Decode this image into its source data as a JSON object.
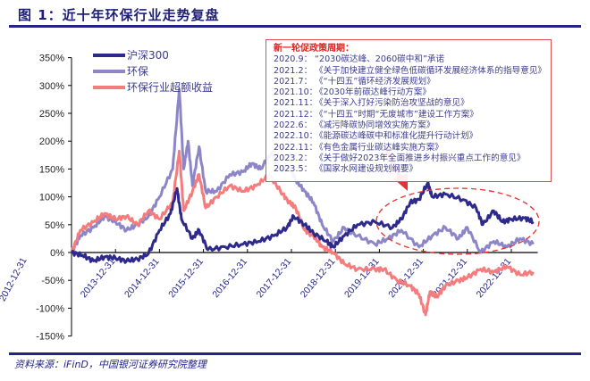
{
  "header": {
    "title": "图 1：近十年环保行业走势复盘"
  },
  "footer": {
    "source": "资料来源：iFinD，中国银河证券研究院整理"
  },
  "annotation": {
    "title": "新一轮促政策周期：",
    "items": [
      {
        "date": "2020.9：",
        "text": "“2030碳达峰、2060碳中和”承诺"
      },
      {
        "date": "2021.2：",
        "text": "《关于加快建立健全绿色低碳循环发展经济体系的指导意见》"
      },
      {
        "date": "2021.7：",
        "text": "《“十四五”循环经济发展规划》"
      },
      {
        "date": "2021.10：",
        "text": "《2030年前碳达峰行动方案》"
      },
      {
        "date": "2021.11：",
        "text": "《关于深入打好污染防治攻坚战的意见》"
      },
      {
        "date": "2021.12：",
        "text": "《“十四五”时期“无废城市”建设工作方案》"
      },
      {
        "date": "2022.6：",
        "text": "《减污降碳协同增效实施方案》"
      },
      {
        "date": "2022.10：",
        "text": "《能源碳达峰碳中和标准化提升行动计划》"
      },
      {
        "date": "2022.11：",
        "text": "《有色金属行业碳达峰实施方案》"
      },
      {
        "date": "2023.2：",
        "text": "《关于做好2023年全面推进乡村振兴重点工作的意见》"
      },
      {
        "date": "2023.5：",
        "text": "《国家水网建设规划纲要》"
      }
    ]
  },
  "colors": {
    "hs300": "#2e2a8c",
    "env": "#8c86c8",
    "excess": "#f47c7c",
    "highlight": "#e83030",
    "rule": "#23238a"
  },
  "chart_data": {
    "type": "line",
    "title": "近十年环保行业走势复盘",
    "xlabel": "",
    "ylabel": "",
    "ylim": [
      -150,
      350
    ],
    "yticks": [
      -150,
      -100,
      -50,
      0,
      50,
      100,
      150,
      200,
      250,
      300,
      350
    ],
    "ytick_labels": [
      "-150%",
      "-100%",
      "-50%",
      "0%",
      "50%",
      "100%",
      "150%",
      "200%",
      "250%",
      "300%",
      "350%"
    ],
    "xticks": [
      2013,
      2014,
      2015,
      2016,
      2017,
      2018,
      2019,
      2020,
      2021,
      2022,
      2023
    ],
    "xtick_labels": [
      "2012-12-31",
      "2013-12-31",
      "2014-12-31",
      "2015-12-31",
      "2016-12-31",
      "2017-12-31",
      "2018-12-31",
      "2019-12-31",
      "2020-12-31",
      "2021-12-31",
      "2022-12-31"
    ],
    "legend_position": "top-left",
    "series": [
      {
        "name": "沪深300",
        "key": "hs300",
        "x": [
          2013.0,
          2013.25,
          2013.5,
          2013.75,
          2014.0,
          2014.25,
          2014.5,
          2014.75,
          2015.0,
          2015.25,
          2015.4,
          2015.5,
          2015.75,
          2015.9,
          2016.1,
          2016.5,
          2016.9,
          2017.25,
          2017.6,
          2017.9,
          2018.05,
          2018.3,
          2018.5,
          2018.8,
          2018.95,
          2019.2,
          2019.5,
          2019.9,
          2020.3,
          2020.5,
          2020.7,
          2020.9,
          2021.1,
          2021.2,
          2021.5,
          2021.9,
          2022.2,
          2022.35,
          2022.6,
          2022.8,
          2023.0,
          2023.3,
          2023.5
        ],
        "y": [
          0,
          -5,
          -15,
          -8,
          -10,
          -15,
          -12,
          -2,
          40,
          70,
          115,
          60,
          25,
          40,
          5,
          10,
          15,
          20,
          30,
          45,
          65,
          50,
          35,
          20,
          10,
          30,
          50,
          55,
          45,
          60,
          90,
          95,
          125,
          100,
          105,
          95,
          80,
          50,
          75,
          55,
          60,
          62,
          55
        ]
      },
      {
        "name": "环保",
        "key": "env",
        "x": [
          2013.0,
          2013.2,
          2013.5,
          2013.75,
          2014.0,
          2014.25,
          2014.5,
          2014.75,
          2015.0,
          2015.3,
          2015.45,
          2015.55,
          2015.65,
          2015.75,
          2015.9,
          2016.05,
          2016.3,
          2016.6,
          2016.9,
          2017.1,
          2017.3,
          2017.55,
          2017.75,
          2017.95,
          2018.1,
          2018.3,
          2018.5,
          2018.7,
          2018.95,
          2019.2,
          2019.5,
          2019.9,
          2020.2,
          2020.5,
          2020.9,
          2021.2,
          2021.5,
          2021.8,
          2022.0,
          2022.3,
          2022.6,
          2022.9,
          2023.2,
          2023.5
        ],
        "y": [
          0,
          30,
          45,
          65,
          55,
          40,
          50,
          65,
          100,
          150,
          293,
          150,
          200,
          120,
          190,
          110,
          110,
          140,
          145,
          160,
          150,
          180,
          150,
          155,
          130,
          110,
          90,
          50,
          20,
          45,
          30,
          15,
          25,
          40,
          10,
          30,
          45,
          25,
          45,
          0,
          20,
          10,
          25,
          15
        ]
      },
      {
        "name": "环保行业超额收益",
        "key": "excess",
        "x": [
          2013.0,
          2013.2,
          2013.5,
          2013.75,
          2014.0,
          2014.25,
          2014.5,
          2014.75,
          2015.0,
          2015.3,
          2015.45,
          2015.55,
          2015.75,
          2015.9,
          2016.05,
          2016.3,
          2016.6,
          2016.9,
          2017.2,
          2017.5,
          2017.75,
          2017.95,
          2018.1,
          2018.3,
          2018.5,
          2018.7,
          2018.95,
          2019.2,
          2019.5,
          2019.9,
          2020.1,
          2020.4,
          2020.7,
          2020.9,
          2021.05,
          2021.15,
          2021.3,
          2021.5,
          2021.8,
          2022.0,
          2022.3,
          2022.6,
          2022.9,
          2023.2,
          2023.5
        ],
        "y": [
          0,
          40,
          55,
          70,
          60,
          65,
          50,
          75,
          60,
          90,
          182,
          75,
          110,
          140,
          80,
          100,
          120,
          110,
          120,
          140,
          110,
          90,
          80,
          40,
          30,
          10,
          0,
          -20,
          -30,
          -30,
          -30,
          -50,
          -60,
          -75,
          -112,
          -70,
          -80,
          -60,
          -50,
          -45,
          -30,
          -35,
          -25,
          -40,
          -35
        ]
      }
    ]
  }
}
